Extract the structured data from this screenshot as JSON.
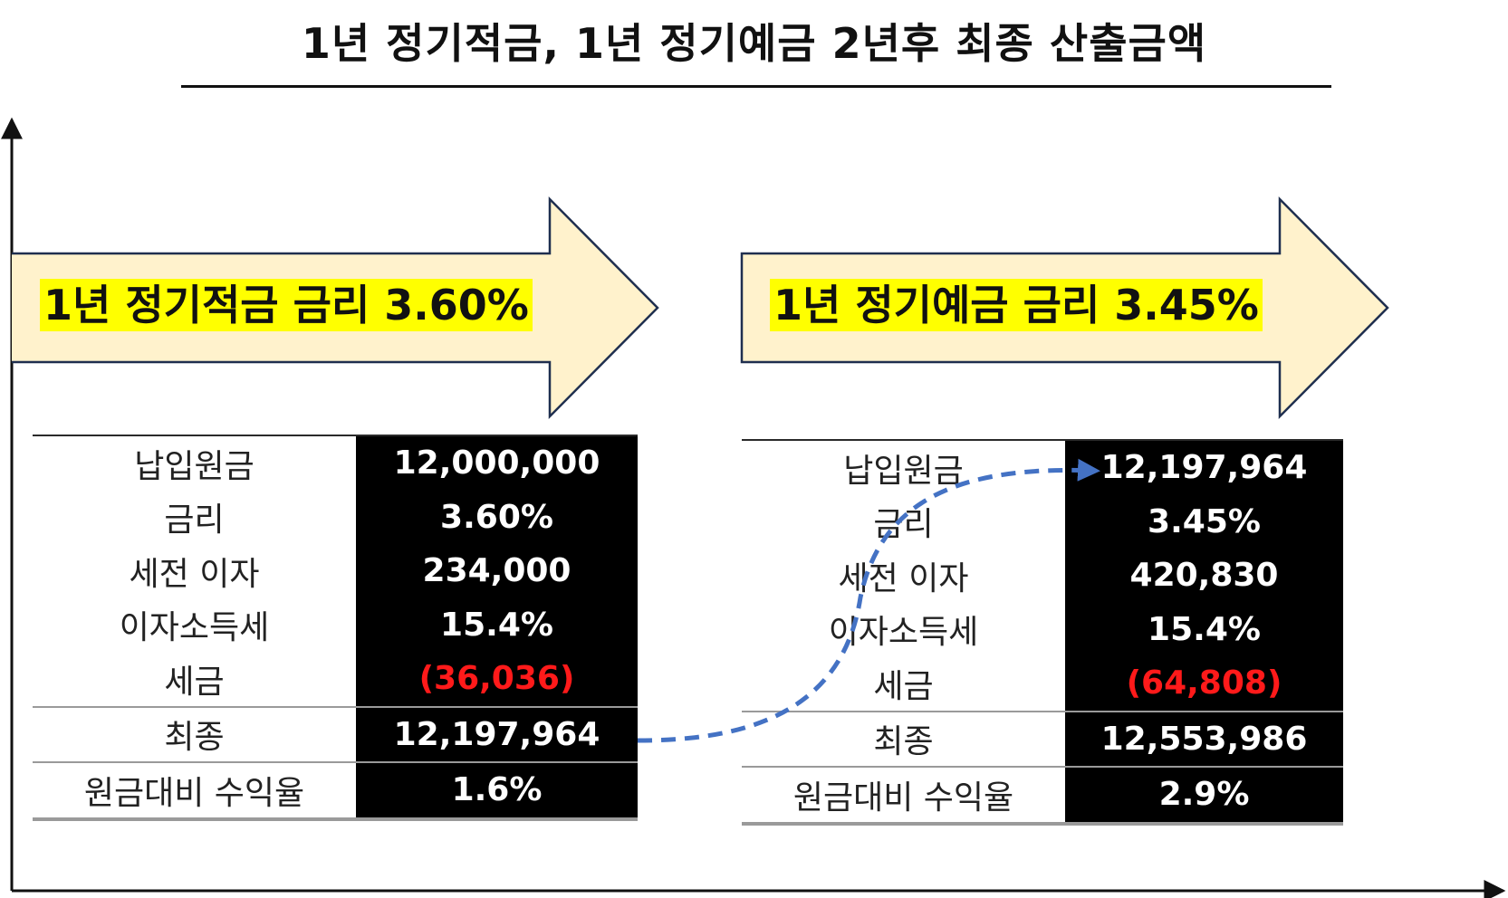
{
  "title": "1년 정기적금, 1년 정기예금 2년후 최종 산출금액",
  "left": {
    "banner": "1년 정기적금 금리 3.60%",
    "rows": [
      {
        "label": "납입원금",
        "value": "12,000,000"
      },
      {
        "label": "금리",
        "value": "3.60%"
      },
      {
        "label": "세전 이자",
        "value": "234,000"
      },
      {
        "label": "이자소득세",
        "value": "15.4%"
      },
      {
        "label": "세금",
        "value": "(36,036)"
      },
      {
        "label": "최종",
        "value": "12,197,964"
      },
      {
        "label": "원금대비 수익율",
        "value": "1.6%"
      }
    ]
  },
  "right": {
    "banner": "1년 정기예금 금리 3.45%",
    "rows": [
      {
        "label": "납입원금",
        "value": "12,197,964"
      },
      {
        "label": "금리",
        "value": "3.45%"
      },
      {
        "label": "세전 이자",
        "value": "420,830"
      },
      {
        "label": "이자소득세",
        "value": "15.4%"
      },
      {
        "label": "세금",
        "value": "(64,808)"
      },
      {
        "label": "최종",
        "value": "12,553,986"
      },
      {
        "label": "원금대비 수익율",
        "value": "2.9%"
      }
    ]
  },
  "colors": {
    "arrow_fill": "#fff2cc",
    "arrow_stroke": "#1f2f4f",
    "banner_highlight": "#ffff00",
    "negative": "#ff1a1a",
    "connector": "#4472c4"
  }
}
